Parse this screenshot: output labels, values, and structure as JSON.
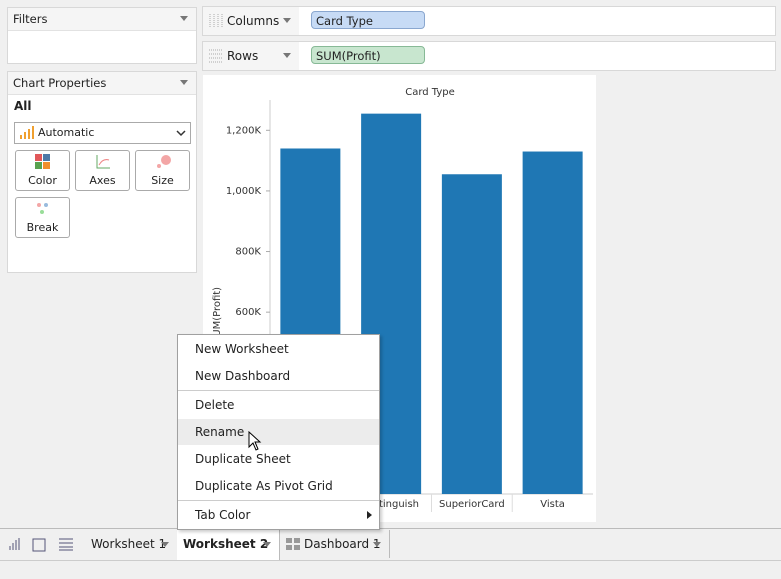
{
  "filters_panel": {
    "title": "Filters"
  },
  "chart_properties": {
    "title": "Chart Properties",
    "section": "All",
    "mark_type": "Automatic",
    "buttons": [
      "Color",
      "Axes",
      "Size",
      "Break"
    ]
  },
  "shelves": {
    "columns": {
      "label": "Columns",
      "pill": "Card Type"
    },
    "rows": {
      "label": "Rows",
      "pill": "SUM(Profit)"
    }
  },
  "chart_data": {
    "type": "bar",
    "title": "Card Type",
    "y_label": "SUM(Profit)",
    "categories": [
      null,
      "Distinguish",
      "SuperiorCard",
      "Vista"
    ],
    "values": [
      1140000,
      1255000,
      1055000,
      1130000
    ],
    "color": "#1f77b4",
    "ylim": [
      0,
      1300000
    ],
    "yticks": [
      {
        "value": 600000,
        "label": "600K"
      },
      {
        "value": 800000,
        "label": "800K"
      },
      {
        "value": 1000000,
        "label": "1,000K"
      },
      {
        "value": 1200000,
        "label": "1,200K"
      }
    ]
  },
  "context_menu": {
    "items": [
      "New Worksheet",
      "New Dashboard",
      "Delete",
      "Rename",
      "Duplicate Sheet",
      "Duplicate As Pivot Grid",
      "Tab Color"
    ]
  },
  "tabs": [
    "Worksheet 1",
    "Worksheet 2",
    "Dashboard 1"
  ]
}
